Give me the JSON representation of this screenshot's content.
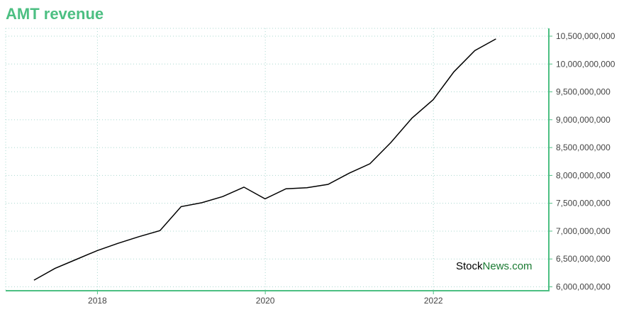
{
  "chart_data": {
    "type": "line",
    "title": "AMT revenue",
    "xlabel": "",
    "ylabel": "",
    "x": [
      "2017-03-31",
      "2017-06-30",
      "2017-09-30",
      "2017-12-31",
      "2018-03-31",
      "2018-06-30",
      "2018-09-30",
      "2018-12-31",
      "2019-03-31",
      "2019-06-30",
      "2019-09-30",
      "2019-12-31",
      "2020-03-31",
      "2020-06-30",
      "2020-09-30",
      "2020-12-31",
      "2021-03-31",
      "2021-06-30",
      "2021-09-30",
      "2021-12-31",
      "2022-03-31",
      "2022-06-30",
      "2022-09-30"
    ],
    "series": [
      {
        "values": [
          6120000000,
          6330000000,
          6490000000,
          6650000000,
          6780000000,
          6900000000,
          7010000000,
          7440000000,
          7510000000,
          7620000000,
          7790000000,
          7580000000,
          7760000000,
          7780000000,
          7840000000,
          8040000000,
          8210000000,
          8590000000,
          9030000000,
          9360000000,
          9860000000,
          10240000000,
          10450000000
        ]
      }
    ],
    "ylim": [
      5930000000,
      10640000000
    ],
    "xlim": [
      "2016-11-28",
      "2023-05-18"
    ],
    "y_ticks": [
      6000000000,
      6500000000,
      7000000000,
      7500000000,
      8000000000,
      8500000000,
      9000000000,
      9500000000,
      10000000000,
      10500000000
    ],
    "y_tick_labels": [
      "6,000,000,000",
      "6,500,000,000",
      "7,000,000,000",
      "7,500,000,000",
      "8,000,000,000",
      "8,500,000,000",
      "9,000,000,000",
      "9,500,000,000",
      "10,000,000,000",
      "10,500,000,000"
    ],
    "x_ticks": [
      "2018-01-01",
      "2020-01-01",
      "2022-01-01"
    ],
    "x_tick_labels": [
      "2018",
      "2020",
      "2022"
    ],
    "grid": true,
    "y_axis_side": "right",
    "colors": {
      "title": "#4cbf82",
      "axis": "#4cbf82",
      "grid": "#a9d8cf",
      "line": "#000000"
    }
  },
  "watermark": {
    "part1": "Stock",
    "part2": "News.com",
    "color1": "#000000",
    "color2": "#1a7a32"
  }
}
